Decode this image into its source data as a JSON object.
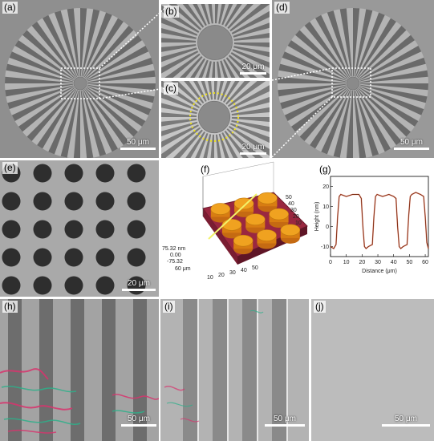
{
  "panels": {
    "a": {
      "label": "(a)",
      "scale": "50 μm"
    },
    "b": {
      "label": "(b)",
      "scale": "20 μm"
    },
    "c": {
      "label": "(c)",
      "scale": "20 μm"
    },
    "d": {
      "label": "(d)",
      "scale": "50 μm"
    },
    "e": {
      "label": "(e)",
      "scale": "20 μm"
    },
    "f": {
      "label": "(f)"
    },
    "g": {
      "label": "(g)"
    },
    "h": {
      "label": "(h)",
      "scale": "50 μm"
    },
    "i": {
      "label": "(i)",
      "scale": "50 μm"
    },
    "j": {
      "label": "(j)",
      "scale": "50 μm"
    }
  },
  "surface_plot": {
    "zmax": "75.32 nm",
    "zmid": "0.00",
    "zmin": "-75.32",
    "x_unit": "60 μm",
    "ticks_depth": [
      "10",
      "20",
      "30",
      "40",
      "50"
    ],
    "ticks_right": [
      "10",
      "20",
      "30",
      "40",
      "50"
    ],
    "ticks_x": [
      "0",
      "10",
      "20",
      "30",
      "40",
      "50"
    ]
  },
  "chart_data": {
    "type": "line",
    "xlabel": "Distance (μm)",
    "ylabel": "Height (nm)",
    "xlim": [
      0,
      62
    ],
    "ylim": [
      -15,
      25
    ],
    "xticks": [
      "0",
      "10",
      "20",
      "30",
      "40",
      "50",
      "60"
    ],
    "yticks": [
      "-10",
      "0",
      "10",
      "20"
    ],
    "series": [
      {
        "color": "#7a2a10",
        "x": [
          0,
          2,
          3.5,
          4.5,
          5.5,
          6.5,
          10,
          14,
          18,
          19.5,
          20.5,
          21.5,
          22.5,
          24,
          26.5,
          27.5,
          28.5,
          29.5,
          33,
          37,
          40,
          41.5,
          42.5,
          43.5,
          44.5,
          46,
          48.5,
          49.5,
          50.5,
          51.5,
          54,
          57,
          59,
          60,
          61,
          62
        ],
        "y": [
          -10,
          -11,
          -9,
          5,
          15,
          16,
          15,
          16,
          16,
          14,
          0,
          -10,
          -11,
          -10,
          -9,
          5,
          15,
          16,
          15,
          16,
          15,
          14,
          0,
          -10,
          -11,
          -10,
          -9,
          5,
          15,
          16,
          17,
          16,
          15,
          5,
          -8,
          -11
        ]
      }
    ]
  }
}
